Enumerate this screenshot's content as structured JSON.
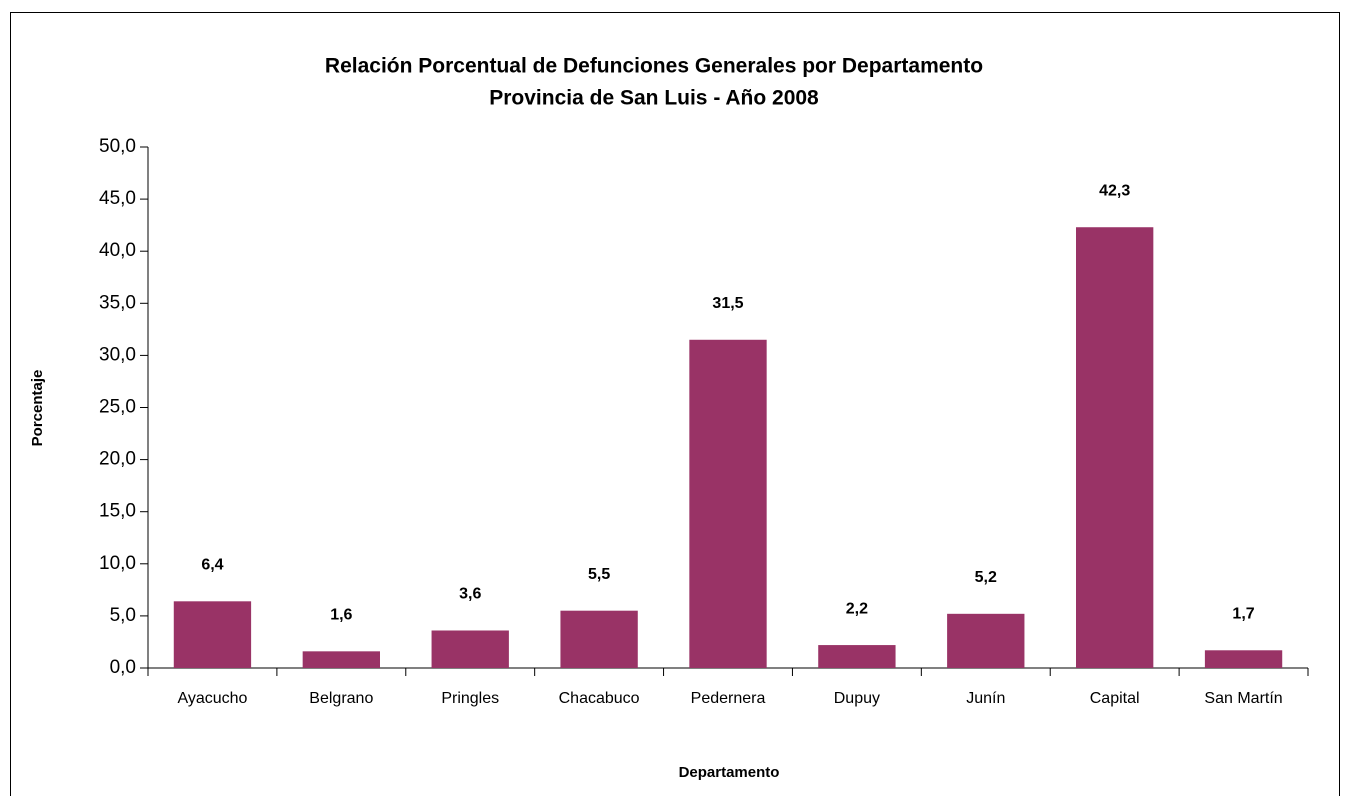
{
  "chart_data": {
    "type": "bar",
    "title": "Relación Porcentual de Defunciones Generales por Departamento",
    "subtitle": "Provincia de San Luis - Año 2008",
    "x_label": "Departamento",
    "y_label": "Porcentaje",
    "categories": [
      "Ayacucho",
      "Belgrano",
      "Pringles",
      "Chacabuco",
      "Pedernera",
      "Dupuy",
      "Junín",
      "Capital",
      "San Martín"
    ],
    "values": [
      6.4,
      1.6,
      3.6,
      5.5,
      31.5,
      2.2,
      5.2,
      42.3,
      1.7
    ],
    "value_labels": [
      "6,4",
      "1,6",
      "3,6",
      "5,5",
      "31,5",
      "2,2",
      "5,2",
      "42,3",
      "1,7"
    ],
    "color": "#993366",
    "ylim": [
      0,
      50
    ],
    "yticks": [
      {
        "value": 0,
        "label": "0,0"
      },
      {
        "value": 5,
        "label": "5,0"
      },
      {
        "value": 10,
        "label": "10,0"
      },
      {
        "value": 15,
        "label": "15,0"
      },
      {
        "value": 20,
        "label": "20,0"
      },
      {
        "value": 25,
        "label": "25,0"
      },
      {
        "value": 30,
        "label": "30,0"
      },
      {
        "value": 35,
        "label": "35,0"
      },
      {
        "value": 40,
        "label": "40,0"
      },
      {
        "value": 45,
        "label": "45,0"
      },
      {
        "value": 50,
        "label": "50,0"
      }
    ],
    "grid": false
  }
}
